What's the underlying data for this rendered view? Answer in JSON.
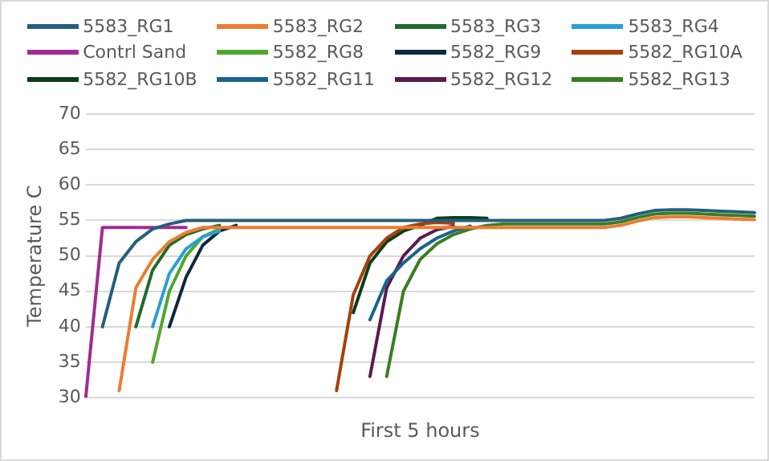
{
  "chart_data": {
    "type": "line",
    "xlabel": "First 5 hours",
    "ylabel": "Temperature C",
    "categories": [
      null,
      null,
      null,
      null,
      null,
      null,
      null,
      null,
      null,
      null,
      null,
      null,
      null,
      null,
      null,
      null,
      null,
      null,
      null,
      null,
      null,
      null,
      null,
      null,
      null,
      null,
      null,
      null,
      null,
      null,
      null,
      null,
      null,
      null,
      null,
      null,
      null,
      null,
      null,
      null,
      null
    ],
    "ylim": [
      30,
      70
    ],
    "yticks": [
      30,
      35,
      40,
      45,
      50,
      55,
      60,
      65,
      70
    ],
    "grid": "y",
    "legend": "top",
    "tick_labels": "y",
    "marker": "none",
    "line_style": "solid",
    "series": [
      {
        "name": "5583_RG1",
        "color": "#255e7e",
        "values": [
          null,
          40,
          49,
          52,
          53.8,
          54.5,
          55,
          55,
          55,
          55,
          55,
          55,
          55,
          55,
          55,
          55,
          55,
          55,
          55,
          55,
          55,
          55,
          55,
          55,
          55,
          55,
          55,
          55,
          55,
          55,
          55,
          55,
          55.3,
          55.9,
          56.4,
          56.5,
          56.5,
          56.4,
          56.3,
          56.2,
          56.1
        ]
      },
      {
        "name": "5583_RG2",
        "color": "#ed7d31",
        "values": [
          null,
          null,
          31,
          45.5,
          49.5,
          52,
          53.3,
          54,
          54,
          54,
          54,
          54,
          54,
          54,
          54,
          54,
          54,
          54,
          54,
          54,
          54,
          54,
          54,
          54,
          54,
          54,
          54,
          54,
          54,
          54,
          54,
          54,
          54.3,
          54.9,
          55.4,
          55.5,
          55.5,
          55.4,
          55.3,
          55.2,
          55.1
        ]
      },
      {
        "name": "5583_RG3",
        "color": "#1f6b2b",
        "values": [
          null,
          null,
          null,
          40,
          48,
          51.5,
          53,
          53.8,
          54.3,
          null,
          null,
          null,
          null,
          null,
          null,
          null,
          null,
          null,
          null,
          null,
          null,
          null,
          null,
          null,
          null,
          null,
          null,
          null,
          null,
          null,
          null,
          null,
          null,
          null,
          null,
          null,
          null,
          null,
          null,
          null,
          null
        ]
      },
      {
        "name": "5583_RG4",
        "color": "#2a9fd6",
        "values": [
          null,
          null,
          null,
          null,
          40,
          47.5,
          51,
          52.7,
          53.5,
          null,
          null,
          null,
          null,
          null,
          null,
          null,
          null,
          null,
          null,
          null,
          null,
          null,
          null,
          null,
          null,
          null,
          null,
          null,
          null,
          null,
          null,
          null,
          null,
          null,
          null,
          null,
          null,
          null,
          null,
          null,
          null
        ]
      },
      {
        "name": "Contrl Sand",
        "color": "#a02b93",
        "values": [
          30,
          54,
          54,
          54,
          54,
          54,
          54,
          null,
          null,
          null,
          null,
          null,
          null,
          null,
          null,
          null,
          null,
          null,
          null,
          null,
          null,
          null,
          null,
          null,
          null,
          null,
          null,
          null,
          null,
          null,
          null,
          null,
          null,
          null,
          null,
          null,
          null,
          null,
          null,
          null,
          null
        ]
      },
      {
        "name": "5582_RG8",
        "color": "#4ea72e",
        "values": [
          null,
          null,
          null,
          null,
          35,
          45,
          50,
          52.7,
          53.8,
          null,
          null,
          null,
          null,
          null,
          null,
          null,
          null,
          null,
          null,
          null,
          null,
          null,
          null,
          null,
          null,
          null,
          null,
          null,
          null,
          null,
          null,
          null,
          null,
          null,
          null,
          null,
          null,
          null,
          null,
          null,
          null
        ]
      },
      {
        "name": "5582_RG9",
        "color": "#0e2841",
        "values": [
          null,
          null,
          null,
          null,
          null,
          40,
          47,
          51.5,
          53.5,
          54.3,
          null,
          null,
          null,
          null,
          null,
          null,
          null,
          null,
          null,
          null,
          null,
          null,
          null,
          null,
          null,
          null,
          null,
          null,
          null,
          null,
          null,
          null,
          null,
          null,
          null,
          null,
          null,
          null,
          null,
          null,
          null
        ]
      },
      {
        "name": "5582_RG10A",
        "color": "#a5410d",
        "values": [
          null,
          null,
          null,
          null,
          null,
          null,
          null,
          null,
          null,
          null,
          null,
          null,
          null,
          null,
          null,
          31,
          44.5,
          50,
          52.5,
          54,
          54.5,
          54.7,
          54.6,
          null,
          null,
          null,
          null,
          null,
          null,
          null,
          null,
          null,
          null,
          null,
          null,
          null,
          null,
          null,
          null,
          null,
          null
        ]
      },
      {
        "name": "5582_RG10B",
        "color": "#0b3d18",
        "values": [
          null,
          null,
          null,
          null,
          null,
          null,
          null,
          null,
          null,
          null,
          null,
          null,
          null,
          null,
          null,
          null,
          42,
          49,
          52,
          53.5,
          54.3,
          55.3,
          55.4,
          55.4,
          55.3,
          null,
          null,
          null,
          null,
          null,
          null,
          null,
          null,
          null,
          null,
          null,
          null,
          null,
          null,
          null,
          null
        ]
      },
      {
        "name": "5582_RG11",
        "color": "#17648d",
        "values": [
          null,
          null,
          null,
          null,
          null,
          null,
          null,
          null,
          null,
          null,
          null,
          null,
          null,
          null,
          null,
          null,
          null,
          41,
          46.5,
          49,
          51,
          52.5,
          53.5,
          54.2,
          null,
          null,
          null,
          null,
          null,
          null,
          null,
          null,
          null,
          null,
          null,
          null,
          null,
          null,
          null,
          null,
          null
        ]
      },
      {
        "name": "5582_RG12",
        "color": "#5a1a52",
        "values": [
          null,
          null,
          null,
          null,
          null,
          null,
          null,
          null,
          null,
          null,
          null,
          null,
          null,
          null,
          null,
          null,
          null,
          33,
          45.5,
          50,
          52.5,
          53.7,
          54.2,
          null,
          null,
          null,
          null,
          null,
          null,
          null,
          null,
          null,
          null,
          null,
          null,
          null,
          null,
          null,
          null,
          null,
          null
        ]
      },
      {
        "name": "5582_RG13",
        "color": "#3b7d23",
        "values": [
          null,
          null,
          null,
          null,
          null,
          null,
          null,
          null,
          null,
          null,
          null,
          null,
          null,
          null,
          null,
          null,
          null,
          null,
          33,
          45,
          49.5,
          51.7,
          53,
          53.8,
          54.3,
          54.5,
          54.5,
          54.5,
          54.5,
          54.5,
          54.5,
          54.5,
          54.8,
          55.4,
          55.9,
          56,
          56,
          55.9,
          55.8,
          55.7,
          55.6
        ]
      }
    ]
  }
}
